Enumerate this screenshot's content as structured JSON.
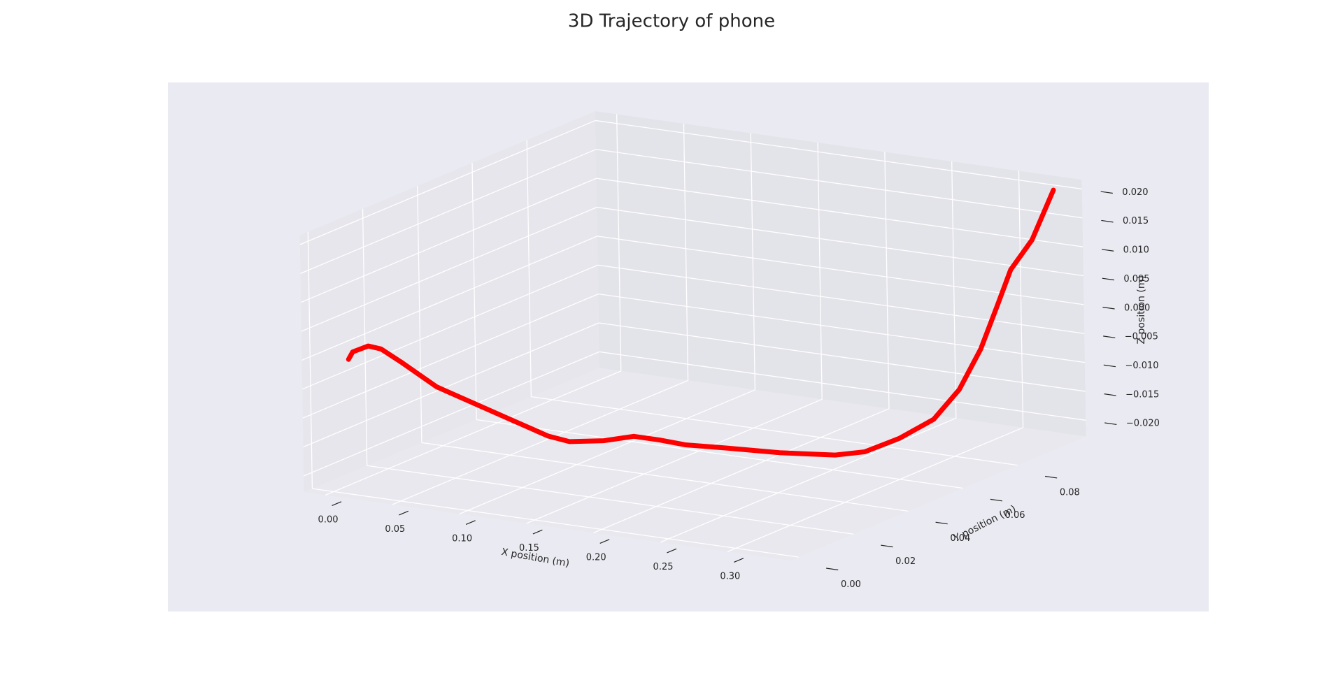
{
  "chart_data": {
    "type": "line3d",
    "title": "3D Trajectory of phone",
    "xlabel": "X position (m)",
    "ylabel": "Y position (m)",
    "zlabel": "Z position (m)",
    "color": "#ff0000",
    "grid": true,
    "x": [
      0.0012,
      0.0044,
      0.0161,
      0.0256,
      0.0392,
      0.0623,
      0.0878,
      0.112,
      0.1406,
      0.1543,
      0.1777,
      0.1979,
      0.2149,
      0.2318,
      0.2593,
      0.2911,
      0.3238,
      0.3306,
      0.3297,
      0.3289,
      0.3307,
      0.3338,
      0.3361,
      0.3372,
      0.3358,
      0.331
    ],
    "y": [
      0.0056,
      0.0056,
      0.0056,
      0.0056,
      0.0067,
      0.0078,
      0.0078,
      0.01,
      0.01,
      0.011,
      0.0121,
      0.0132,
      0.0143,
      0.0154,
      0.0175,
      0.0208,
      0.0251,
      0.0326,
      0.0456,
      0.0586,
      0.0672,
      0.0737,
      0.0791,
      0.0834,
      0.092,
      0.1024
    ],
    "z": [
      -0.001,
      0.0004,
      0.0018,
      0.0016,
      -0.0006,
      -0.0042,
      -0.006,
      -0.0086,
      -0.0106,
      -0.0113,
      -0.0106,
      -0.0094,
      -0.0097,
      -0.0102,
      -0.0103,
      -0.0107,
      -0.0109,
      -0.0116,
      -0.0119,
      -0.0112,
      -0.0077,
      -0.0019,
      0.0049,
      0.01,
      0.0134,
      0.0198
    ],
    "xlim": [
      -0.016,
      0.347
    ],
    "ylim": [
      -0.003,
      0.105
    ],
    "zlim": [
      -0.0228,
      0.0216
    ],
    "xticks": [
      {
        "value": 0,
        "label": "0.00"
      },
      0.05,
      {
        "value": 0.1,
        "label": "0.10"
      },
      0.15,
      {
        "value": 0.2,
        "label": "0.20"
      },
      0.25,
      {
        "value": 0.3,
        "label": "0.30"
      }
    ],
    "yticks": [
      {
        "value": 0,
        "label": "0.00"
      },
      0.02,
      0.04,
      0.06,
      0.08
    ],
    "zticks": [
      {
        "value": -0.02,
        "label": "−0.020"
      },
      {
        "value": -0.015,
        "label": "−0.015"
      },
      {
        "value": -0.01,
        "label": "−0.010"
      },
      {
        "value": -0.005,
        "label": "−0.005"
      },
      {
        "value": 0,
        "label": "0.000"
      },
      0.005,
      {
        "value": 0.01,
        "label": "0.010"
      },
      0.015,
      {
        "value": 0.02,
        "label": "0.020"
      }
    ]
  }
}
